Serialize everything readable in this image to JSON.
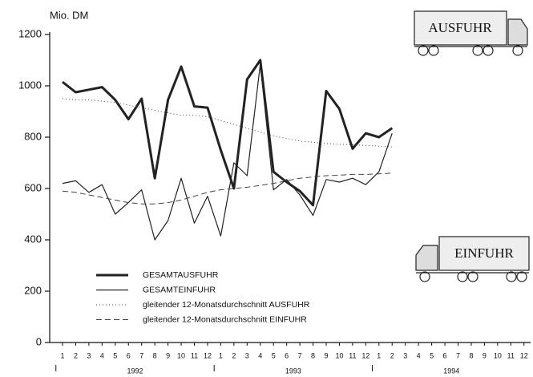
{
  "chart_data": {
    "type": "line",
    "y_label": "Mio. DM",
    "annotations": [
      "AUSFUHR",
      "EINFUHR"
    ],
    "categories": [
      "1",
      "2",
      "3",
      "4",
      "5",
      "6",
      "7",
      "8",
      "9",
      "10",
      "11",
      "12",
      "1",
      "2",
      "3",
      "4",
      "5",
      "6",
      "7",
      "8",
      "9",
      "10",
      "11",
      "12",
      "1",
      "2",
      "3",
      "4",
      "5",
      "6",
      "7",
      "8",
      "9",
      "10",
      "11",
      "12"
    ],
    "years": [
      "1992",
      "1993",
      "1994"
    ],
    "ylim": [
      0,
      1200
    ],
    "yticks": [
      0,
      200,
      400,
      600,
      800,
      1000,
      1200
    ],
    "series": [
      {
        "name": "GESAMTAUSFUHR",
        "color": "#222222",
        "width": 3,
        "dash": "none",
        "values": [
          1015,
          975,
          985,
          995,
          945,
          870,
          950,
          640,
          945,
          1075,
          920,
          915,
          750,
          600,
          1025,
          1100,
          665,
          625,
          590,
          535,
          980,
          910,
          755,
          815,
          800,
          835,
          null,
          null,
          null,
          null,
          null,
          null,
          null,
          null,
          null,
          null
        ]
      },
      {
        "name": "GESAMTEINFUHR",
        "color": "#222222",
        "width": 1.2,
        "dash": "none",
        "values": [
          620,
          630,
          585,
          615,
          500,
          545,
          595,
          400,
          475,
          640,
          465,
          570,
          415,
          700,
          650,
          1085,
          595,
          635,
          575,
          495,
          635,
          625,
          640,
          615,
          665,
          815,
          null,
          null,
          null,
          null,
          null,
          null,
          null,
          null,
          null,
          null
        ]
      },
      {
        "name": "gleitender 12-Monatsdurchschnitt AUSFUHR",
        "color": "#444444",
        "width": 1,
        "dash": "1,3",
        "values": [
          950,
          945,
          945,
          940,
          935,
          925,
          915,
          905,
          895,
          885,
          885,
          880,
          865,
          850,
          835,
          820,
          805,
          795,
          785,
          780,
          775,
          772,
          770,
          768,
          765,
          762,
          null,
          null,
          null,
          null,
          null,
          null,
          null,
          null,
          null,
          null
        ]
      },
      {
        "name": "gleitender 12-Monatsdurchschnitt EINFUHR",
        "color": "#444444",
        "width": 1,
        "dash": "7,4",
        "values": [
          590,
          585,
          575,
          565,
          555,
          545,
          540,
          540,
          545,
          555,
          570,
          585,
          595,
          600,
          605,
          612,
          620,
          630,
          640,
          645,
          650,
          652,
          655,
          655,
          657,
          660,
          null,
          null,
          null,
          null,
          null,
          null,
          null,
          null,
          null,
          null
        ]
      }
    ]
  }
}
